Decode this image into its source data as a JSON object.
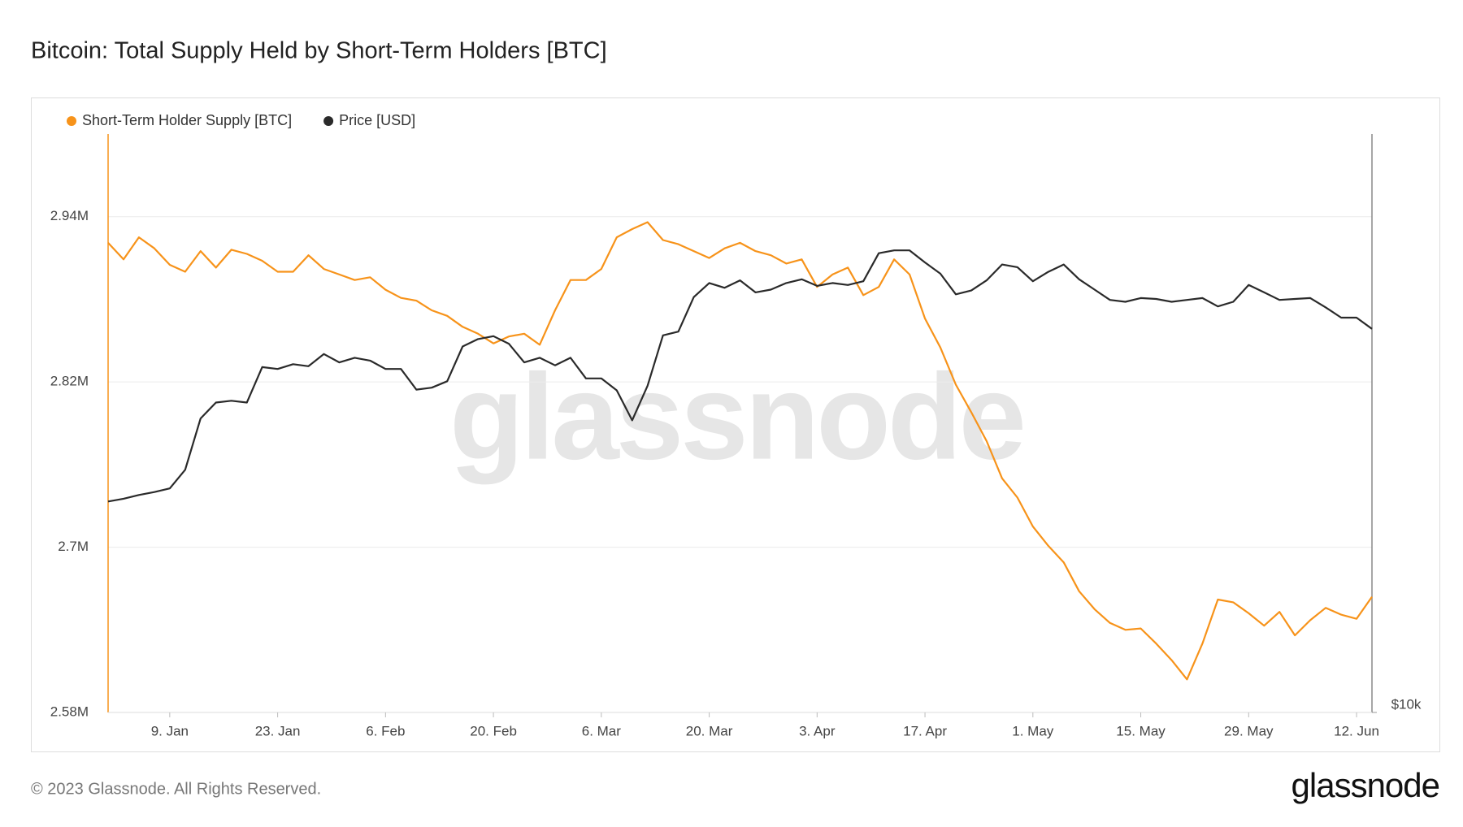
{
  "chart_data": {
    "type": "line",
    "title": "Bitcoin: Total Supply Held by Short-Term Holders [BTC]",
    "watermark": "glassnode",
    "categories": [
      null,
      null,
      null,
      null,
      "9. Jan",
      null,
      null,
      null,
      null,
      null,
      null,
      "23. Jan",
      null,
      null,
      null,
      null,
      null,
      null,
      "6. Feb",
      null,
      null,
      null,
      null,
      null,
      null,
      "20. Feb",
      null,
      null,
      null,
      null,
      null,
      null,
      "6. Mar",
      null,
      null,
      null,
      null,
      null,
      null,
      "20. Mar",
      null,
      null,
      null,
      null,
      null,
      null,
      "3. Apr",
      null,
      null,
      null,
      null,
      null,
      null,
      "17. Apr",
      null,
      null,
      null,
      null,
      null,
      null,
      "1. May",
      null,
      null,
      null,
      null,
      null,
      null,
      "15. May",
      null,
      null,
      null,
      null,
      null,
      null,
      "29. May",
      null,
      null,
      null,
      null,
      null,
      null,
      "12. Jun",
      null
    ],
    "series": [
      {
        "name": "Short-Term Holder Supply [BTC]",
        "color": "#f7931a",
        "axis": "y",
        "values": [
          2921000,
          2909000,
          2925000,
          2917000,
          2905000,
          2900000,
          2915000,
          2903000,
          2916000,
          2913000,
          2908000,
          2900000,
          2900000,
          2912000,
          2902000,
          2898000,
          2894000,
          2896000,
          2887000,
          2881000,
          2879000,
          2872000,
          2868000,
          2860000,
          2855000,
          2848000,
          2853000,
          2855000,
          2847000,
          2872000,
          2894000,
          2894000,
          2902000,
          2925000,
          2931000,
          2936000,
          2923000,
          2920000,
          2915000,
          2910000,
          2917000,
          2921000,
          2915000,
          2912000,
          2906000,
          2909000,
          2889000,
          2898000,
          2903000,
          2883000,
          2889000,
          2909000,
          2898000,
          2866000,
          2845000,
          2818000,
          2798000,
          2777000,
          2750000,
          2736000,
          2715000,
          2701000,
          2689000,
          2668000,
          2655000,
          2645000,
          2640000,
          2641000,
          2630000,
          2618000,
          2604000,
          2630000,
          2662000,
          2660000,
          2652000,
          2643000,
          2653000,
          2636000,
          2647000,
          2656000,
          2651000,
          2648000,
          2664000
        ]
      },
      {
        "name": "Price [USD]",
        "color": "#2a2a2a",
        "axis": "y2",
        "values": [
          16580,
          16690,
          16840,
          16960,
          17110,
          17890,
          20230,
          21020,
          21110,
          21020,
          22880,
          22780,
          23040,
          22930,
          23610,
          23140,
          23400,
          23240,
          22780,
          22780,
          21680,
          21780,
          22120,
          24040,
          24470,
          24640,
          24200,
          23140,
          23400,
          22980,
          23400,
          22270,
          22270,
          21640,
          20140,
          21880,
          24690,
          24910,
          27060,
          27990,
          27670,
          28170,
          27370,
          27550,
          27990,
          28240,
          27800,
          27990,
          27860,
          28110,
          30060,
          30270,
          30270,
          29400,
          28620,
          27240,
          27490,
          28170,
          29260,
          29070,
          28110,
          28750,
          29260,
          28240,
          27550,
          26880,
          26760,
          27000,
          26940,
          26760,
          26880,
          27000,
          26460,
          26760,
          27860,
          27370,
          26880,
          26940,
          27000,
          26400,
          25760,
          25760,
          25080
        ]
      }
    ],
    "ylim": [
      2580000,
      3000000
    ],
    "yticks": [
      {
        "value": 2580000,
        "label": "2.58M"
      },
      {
        "value": 2700000,
        "label": "2.7M"
      },
      {
        "value": 2820000,
        "label": "2.82M"
      },
      {
        "value": 2940000,
        "label": "2.94M"
      }
    ],
    "y2lim": [
      10000,
      40000
    ],
    "y2log": true,
    "y2ticks": [
      {
        "value": 10000,
        "label": "$10k"
      }
    ],
    "grid": true,
    "legend": "top-left"
  },
  "footer": {
    "copyright": "© 2023 Glassnode. All Rights Reserved.",
    "logo": "glassnode"
  }
}
